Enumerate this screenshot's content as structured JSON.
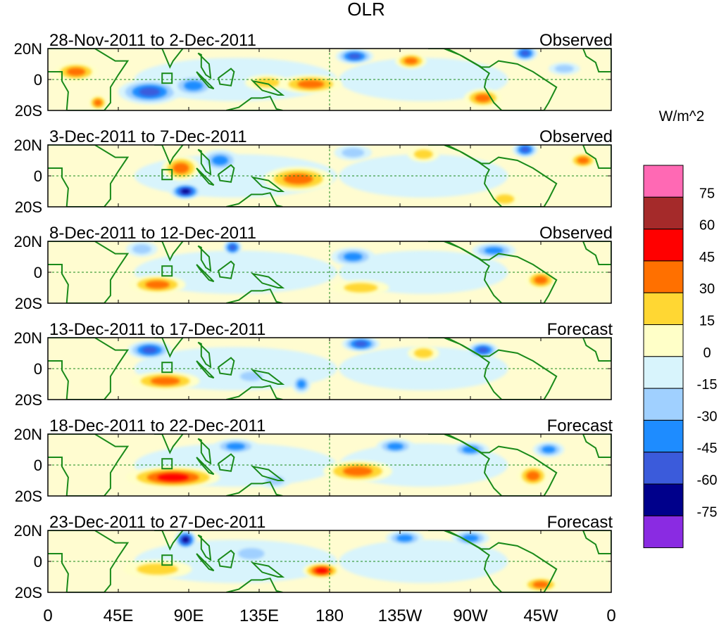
{
  "chart_data": {
    "type": "heatmap",
    "title": "OLR",
    "units_label": "W/m^2",
    "x_ticks": [
      "0",
      "45E",
      "90E",
      "135E",
      "180",
      "135W",
      "90W",
      "45W",
      "0"
    ],
    "x_tick_lons": [
      0,
      45,
      90,
      135,
      180,
      225,
      270,
      315,
      360
    ],
    "y_ticks": [
      "20N",
      "0",
      "20S"
    ],
    "y_tick_lats": [
      20,
      0,
      -20
    ],
    "lon_range": [
      0,
      360
    ],
    "lat_range": [
      -20,
      20
    ],
    "colorbar": {
      "levels": [
        -75,
        -60,
        -45,
        -30,
        -15,
        0,
        15,
        30,
        45,
        60,
        75
      ],
      "labels": [
        "75",
        "60",
        "45",
        "30",
        "15",
        "0",
        "-15",
        "-30",
        "-45",
        "-60",
        "-75"
      ],
      "colors": [
        "#8a2be2",
        "#00008b",
        "#3b5bdb",
        "#1e8cff",
        "#a0d0ff",
        "#d8f4fc",
        "#ffffc8",
        "#ffd733",
        "#ff7000",
        "#ff0000",
        "#a52a2a",
        "#ff69b4"
      ]
    },
    "panels": [
      {
        "period": "28-Nov-2011 to 2-Dec-2011",
        "kind": "Observed",
        "anomalies": [
          {
            "lon": 18,
            "lat": 5,
            "rx": 14,
            "ry": 6,
            "value": 32
          },
          {
            "lon": 32,
            "lat": -15,
            "rx": 6,
            "ry": 5,
            "value": 35
          },
          {
            "lon": 65,
            "lat": -8,
            "rx": 20,
            "ry": 8,
            "value": -55
          },
          {
            "lon": 93,
            "lat": -4,
            "rx": 14,
            "ry": 7,
            "value": -45
          },
          {
            "lon": 140,
            "lat": -2,
            "rx": 14,
            "ry": 5,
            "value": 30
          },
          {
            "lon": 168,
            "lat": -3,
            "rx": 20,
            "ry": 6,
            "value": 45
          },
          {
            "lon": 196,
            "lat": 15,
            "rx": 12,
            "ry": 5,
            "value": -48
          },
          {
            "lon": 232,
            "lat": 12,
            "rx": 10,
            "ry": 5,
            "value": 33
          },
          {
            "lon": 278,
            "lat": -12,
            "rx": 12,
            "ry": 6,
            "value": 32
          },
          {
            "lon": 305,
            "lat": 17,
            "rx": 8,
            "ry": 5,
            "value": -55
          },
          {
            "lon": 330,
            "lat": 7,
            "rx": 10,
            "ry": 4,
            "value": -25
          }
        ]
      },
      {
        "period": "3-Dec-2011 to 7-Dec-2011",
        "kind": "Observed",
        "anomalies": [
          {
            "lon": 85,
            "lat": 5,
            "rx": 12,
            "ry": 8,
            "value": 45
          },
          {
            "lon": 110,
            "lat": 10,
            "rx": 12,
            "ry": 7,
            "value": -45
          },
          {
            "lon": 88,
            "lat": -10,
            "rx": 10,
            "ry": 5,
            "value": -65
          },
          {
            "lon": 160,
            "lat": -2,
            "rx": 22,
            "ry": 8,
            "value": 35
          },
          {
            "lon": 195,
            "lat": 15,
            "rx": 12,
            "ry": 5,
            "value": -20
          },
          {
            "lon": 240,
            "lat": 14,
            "rx": 10,
            "ry": 5,
            "value": 18
          },
          {
            "lon": 305,
            "lat": 17,
            "rx": 8,
            "ry": 5,
            "value": -55
          },
          {
            "lon": 342,
            "lat": 10,
            "rx": 9,
            "ry": 5,
            "value": 33
          },
          {
            "lon": 292,
            "lat": -15,
            "rx": 10,
            "ry": 5,
            "value": 30
          },
          {
            "lon": 238,
            "lat": -5,
            "rx": 25,
            "ry": 7,
            "value": -12
          }
        ]
      },
      {
        "period": "8-Dec-2011 to 12-Dec-2011",
        "kind": "Observed",
        "anomalies": [
          {
            "lon": 70,
            "lat": -8,
            "rx": 18,
            "ry": 6,
            "value": 35
          },
          {
            "lon": 118,
            "lat": 16,
            "rx": 6,
            "ry": 5,
            "value": -60
          },
          {
            "lon": 60,
            "lat": 15,
            "rx": 10,
            "ry": 5,
            "value": -30
          },
          {
            "lon": 195,
            "lat": 10,
            "rx": 14,
            "ry": 6,
            "value": -35
          },
          {
            "lon": 285,
            "lat": 14,
            "rx": 14,
            "ry": 5,
            "value": -40
          },
          {
            "lon": 315,
            "lat": -5,
            "rx": 10,
            "ry": 6,
            "value": 40
          },
          {
            "lon": 200,
            "lat": -10,
            "rx": 18,
            "ry": 5,
            "value": 20
          },
          {
            "lon": 150,
            "lat": 5,
            "rx": 18,
            "ry": 6,
            "value": -12
          }
        ]
      },
      {
        "period": "13-Dec-2011 to 17-Dec-2011",
        "kind": "Forecast",
        "anomalies": [
          {
            "lon": 75,
            "lat": -8,
            "rx": 22,
            "ry": 6,
            "value": 45
          },
          {
            "lon": 65,
            "lat": 12,
            "rx": 14,
            "ry": 6,
            "value": -50
          },
          {
            "lon": 200,
            "lat": 16,
            "rx": 12,
            "ry": 5,
            "value": -60
          },
          {
            "lon": 278,
            "lat": 12,
            "rx": 10,
            "ry": 5,
            "value": -55
          },
          {
            "lon": 162,
            "lat": -10,
            "rx": 6,
            "ry": 6,
            "value": -45
          },
          {
            "lon": 130,
            "lat": -5,
            "rx": 12,
            "ry": 5,
            "value": -25
          },
          {
            "lon": 240,
            "lat": 10,
            "rx": 10,
            "ry": 5,
            "value": 25
          }
        ]
      },
      {
        "period": "18-Dec-2011 to 22-Dec-2011",
        "kind": "Forecast",
        "anomalies": [
          {
            "lon": 80,
            "lat": -8,
            "rx": 30,
            "ry": 7,
            "value": 50
          },
          {
            "lon": 120,
            "lat": 12,
            "rx": 14,
            "ry": 5,
            "value": -40
          },
          {
            "lon": 145,
            "lat": -10,
            "rx": 10,
            "ry": 5,
            "value": -30
          },
          {
            "lon": 198,
            "lat": -4,
            "rx": 22,
            "ry": 7,
            "value": 42
          },
          {
            "lon": 222,
            "lat": 12,
            "rx": 12,
            "ry": 5,
            "value": -40
          },
          {
            "lon": 270,
            "lat": 10,
            "rx": 12,
            "ry": 5,
            "value": -35
          },
          {
            "lon": 310,
            "lat": -7,
            "rx": 10,
            "ry": 7,
            "value": 40
          },
          {
            "lon": 320,
            "lat": 10,
            "rx": 10,
            "ry": 5,
            "value": -35
          }
        ]
      },
      {
        "period": "23-Dec-2011 to 27-Dec-2011",
        "kind": "Forecast",
        "anomalies": [
          {
            "lon": 88,
            "lat": 14,
            "rx": 7,
            "ry": 6,
            "value": -65
          },
          {
            "lon": 175,
            "lat": -6,
            "rx": 12,
            "ry": 5,
            "value": 50
          },
          {
            "lon": 70,
            "lat": -5,
            "rx": 22,
            "ry": 6,
            "value": 28
          },
          {
            "lon": 228,
            "lat": 15,
            "rx": 12,
            "ry": 5,
            "value": -35
          },
          {
            "lon": 270,
            "lat": 15,
            "rx": 12,
            "ry": 5,
            "value": -35
          },
          {
            "lon": 315,
            "lat": -15,
            "rx": 12,
            "ry": 5,
            "value": 40
          },
          {
            "lon": 130,
            "lat": 5,
            "rx": 14,
            "ry": 6,
            "value": -20
          }
        ]
      }
    ]
  }
}
